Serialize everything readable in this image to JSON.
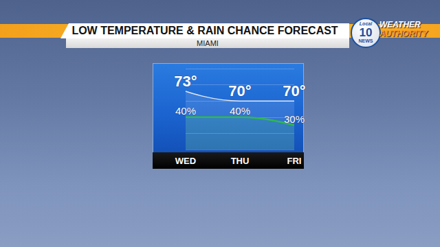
{
  "chart_data": {
    "type": "line",
    "title": "LOW TEMPERATURE & RAIN CHANCE FORECAST",
    "subtitle": "MIAMI",
    "logo": {
      "station": [
        "Local",
        "10",
        "NEWS"
      ],
      "brand": [
        "WEATHER",
        "AUTHORITY"
      ]
    },
    "categories": [
      "WED",
      "THU",
      "FRI"
    ],
    "series": [
      {
        "color": "#e3e8f0",
        "values": [
          73,
          70,
          70
        ],
        "value_labels": [
          "73°",
          "70°",
          "70°"
        ]
      },
      {
        "color": "#2fb84e",
        "values": [
          40,
          40,
          30
        ],
        "value_labels": [
          "40%",
          "40%",
          "30%"
        ],
        "axis": "y2"
      }
    ],
    "ylim": [
      55,
      80
    ],
    "yticks": [
      55,
      60,
      65,
      70,
      75,
      80
    ],
    "y2lim": [
      0,
      100
    ],
    "y2ticks": [
      0,
      20,
      40,
      60,
      80,
      100
    ],
    "grid": true,
    "data_labels": true,
    "tick_labels": "x"
  }
}
